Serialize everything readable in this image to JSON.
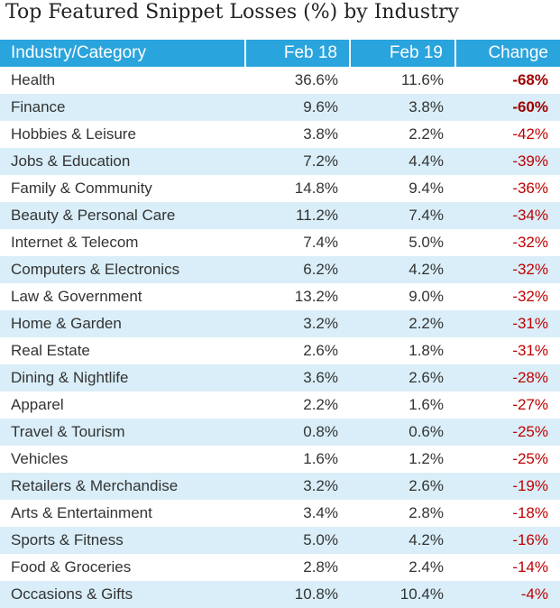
{
  "header": {
    "title": "Top Featured Snippet Losses (%) by Industry"
  },
  "table": {
    "columns": [
      "Industry/Category",
      "Feb 18",
      "Feb 19",
      "Change"
    ],
    "rows": [
      [
        "Health",
        "36.6%",
        "11.6%",
        "-68%"
      ],
      [
        "Finance",
        "9.6%",
        "3.8%",
        "-60%"
      ],
      [
        "Hobbies & Leisure",
        "3.8%",
        "2.2%",
        "-42%"
      ],
      [
        "Jobs & Education",
        "7.2%",
        "4.4%",
        "-39%"
      ],
      [
        "Family & Community",
        "14.8%",
        "9.4%",
        "-36%"
      ],
      [
        "Beauty & Personal Care",
        "11.2%",
        "7.4%",
        "-34%"
      ],
      [
        "Internet & Telecom",
        "7.4%",
        "5.0%",
        "-32%"
      ],
      [
        "Computers & Electronics",
        "6.2%",
        "4.2%",
        "-32%"
      ],
      [
        "Law & Government",
        "13.2%",
        "9.0%",
        "-32%"
      ],
      [
        "Home & Garden",
        "3.2%",
        "2.2%",
        "-31%"
      ],
      [
        "Real Estate",
        "2.6%",
        "1.8%",
        "-31%"
      ],
      [
        "Dining & Nightlife",
        "3.6%",
        "2.6%",
        "-28%"
      ],
      [
        "Apparel",
        "2.2%",
        "1.6%",
        "-27%"
      ],
      [
        "Travel & Tourism",
        "0.8%",
        "0.6%",
        "-25%"
      ],
      [
        "Vehicles",
        "1.6%",
        "1.2%",
        "-25%"
      ],
      [
        "Retailers & Merchandise",
        "3.2%",
        "2.6%",
        "-19%"
      ],
      [
        "Arts & Entertainment",
        "3.4%",
        "2.8%",
        "-18%"
      ],
      [
        "Sports & Fitness",
        "5.0%",
        "4.2%",
        "-16%"
      ],
      [
        "Food & Groceries",
        "2.8%",
        "2.4%",
        "-14%"
      ],
      [
        "Occasions & Gifts",
        "10.8%",
        "10.4%",
        "-4%"
      ]
    ]
  }
}
